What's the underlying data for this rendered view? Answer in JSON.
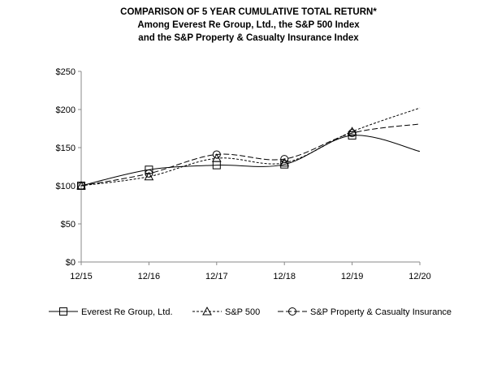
{
  "chart_data": {
    "type": "line",
    "title": [
      "COMPARISON OF 5 YEAR CUMULATIVE  TOTAL RETURN*",
      "Among Everest Re Group, Ltd., the S&P 500 Index",
      "and the S&P Property & Casualty Insurance  Index"
    ],
    "categories": [
      "12/15",
      "12/16",
      "12/17",
      "12/18",
      "12/19",
      "12/20"
    ],
    "ylim": [
      0,
      250
    ],
    "yticks": [
      "$0",
      "$50",
      "$100",
      "$150",
      "$200",
      "$250"
    ],
    "ytick_values": [
      0,
      50,
      100,
      150,
      200,
      250
    ],
    "legend_position": "bottom",
    "grid": false,
    "series": [
      {
        "name": "Everest Re Group, Ltd.",
        "marker": "square",
        "dash": "solid",
        "values": [
          100,
          121,
          127,
          128,
          166,
          145
        ]
      },
      {
        "name": "S&P 500",
        "marker": "triangle",
        "dash": "short-dash",
        "values": [
          100,
          112,
          136,
          130,
          171,
          202
        ]
      },
      {
        "name": "S&P Property & Casualty Insurance",
        "marker": "circle",
        "dash": "long-dash",
        "values": [
          100,
          116,
          141,
          135,
          169,
          181
        ]
      }
    ]
  }
}
